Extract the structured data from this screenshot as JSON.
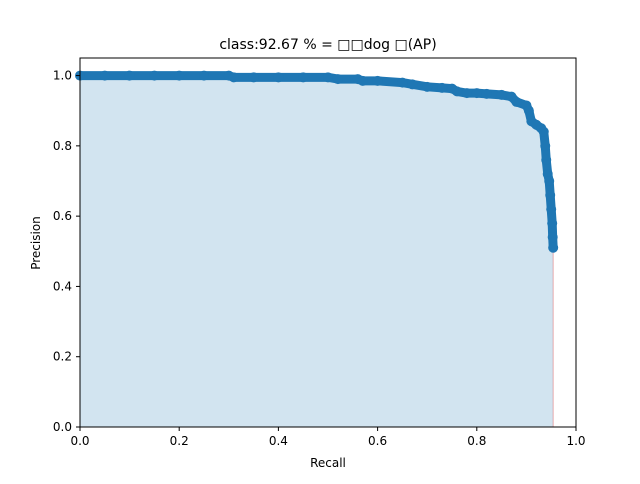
{
  "chart_data": {
    "type": "area",
    "title": "class:92.67 % = □□dog □(AP)",
    "xlabel": "Recall",
    "ylabel": "Precision",
    "xlim": [
      0.0,
      1.0
    ],
    "ylim": [
      0.0,
      1.05
    ],
    "xticks": [
      "0.0",
      "0.2",
      "0.4",
      "0.6",
      "0.8",
      "1.0"
    ],
    "yticks": [
      "0.0",
      "0.2",
      "0.4",
      "0.6",
      "0.8",
      "1.0"
    ],
    "grid": false,
    "legend": "none",
    "colors": {
      "line": "#1f77b4",
      "fill": "#1f77b4",
      "edge": "#d62728"
    },
    "series": [
      {
        "points": [
          [
            0.0,
            1.0
          ],
          [
            0.05,
            1.0
          ],
          [
            0.1,
            1.0
          ],
          [
            0.15,
            1.0
          ],
          [
            0.2,
            1.0
          ],
          [
            0.25,
            1.0
          ],
          [
            0.3,
            1.0
          ],
          [
            0.31,
            0.995
          ],
          [
            0.35,
            0.995
          ],
          [
            0.4,
            0.995
          ],
          [
            0.45,
            0.995
          ],
          [
            0.5,
            0.995
          ],
          [
            0.52,
            0.99
          ],
          [
            0.56,
            0.99
          ],
          [
            0.57,
            0.985
          ],
          [
            0.6,
            0.985
          ],
          [
            0.65,
            0.98
          ],
          [
            0.67,
            0.975
          ],
          [
            0.7,
            0.968
          ],
          [
            0.73,
            0.965
          ],
          [
            0.75,
            0.963
          ],
          [
            0.76,
            0.955
          ],
          [
            0.78,
            0.95
          ],
          [
            0.8,
            0.95
          ],
          [
            0.82,
            0.948
          ],
          [
            0.85,
            0.945
          ],
          [
            0.87,
            0.94
          ],
          [
            0.88,
            0.925
          ],
          [
            0.9,
            0.915
          ],
          [
            0.905,
            0.9
          ],
          [
            0.91,
            0.87
          ],
          [
            0.92,
            0.86
          ],
          [
            0.93,
            0.85
          ],
          [
            0.935,
            0.84
          ],
          [
            0.938,
            0.8
          ],
          [
            0.94,
            0.76
          ],
          [
            0.943,
            0.72
          ],
          [
            0.946,
            0.7
          ],
          [
            0.948,
            0.66
          ],
          [
            0.95,
            0.62
          ],
          [
            0.952,
            0.58
          ],
          [
            0.953,
            0.54
          ],
          [
            0.954,
            0.51
          ]
        ]
      }
    ]
  }
}
